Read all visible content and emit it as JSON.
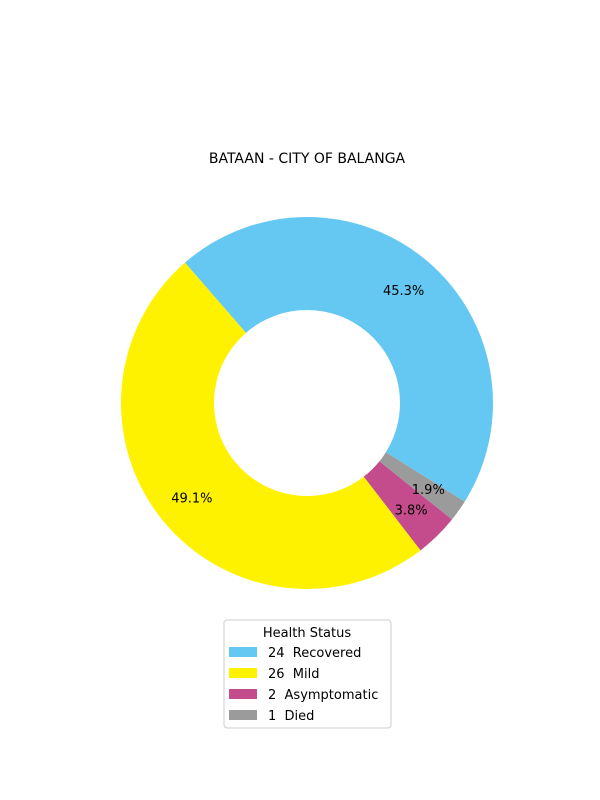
{
  "chart_data": {
    "type": "pie",
    "style": "donut",
    "title": "BATAAN - CITY OF BALANGA",
    "categories": [
      "Recovered",
      "Mild",
      "Asymptomatic",
      "Died"
    ],
    "values": [
      24,
      26,
      2,
      1
    ],
    "percent_labels": [
      "45.3%",
      "49.1%",
      "3.8%",
      "1.9%"
    ],
    "colors": [
      "#64c8f2",
      "#fff200",
      "#c44b8c",
      "#9b9b9b"
    ],
    "legend": {
      "title": "Health Status",
      "placement": "bottom-center",
      "entries": [
        "24  Recovered",
        "26  Mild",
        "2  Asymptomatic",
        "1  Died"
      ]
    }
  }
}
